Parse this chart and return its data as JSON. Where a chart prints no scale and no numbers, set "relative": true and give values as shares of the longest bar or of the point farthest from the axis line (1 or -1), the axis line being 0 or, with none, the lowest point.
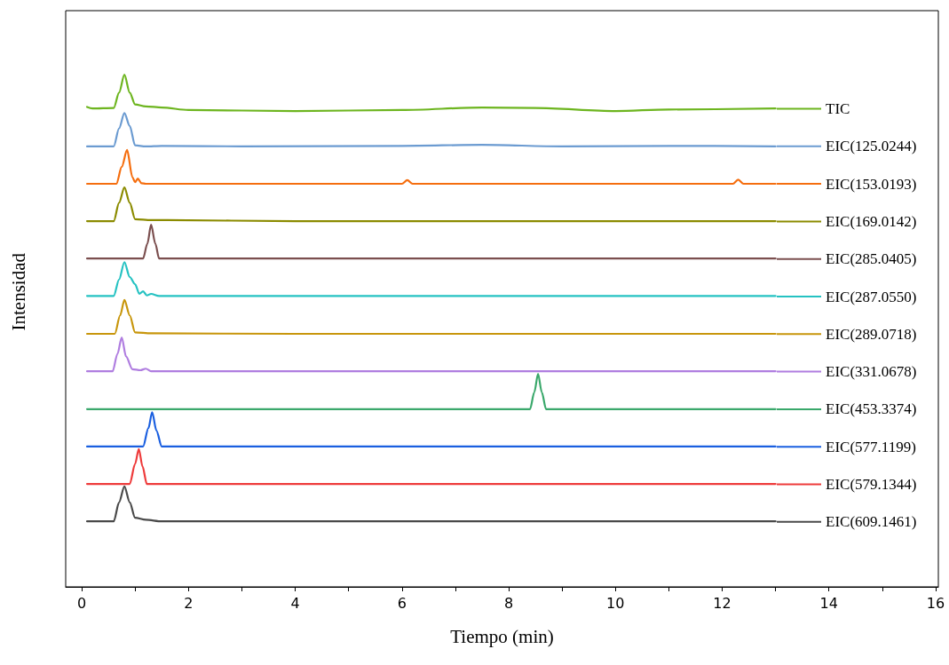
{
  "chart_data": {
    "type": "line",
    "relative": true,
    "xlabel": "Tiempo (min)",
    "ylabel": "Intensidad",
    "xlim": [
      -0.3,
      16.05
    ],
    "xticks": [
      0,
      {
        "value": 1,
        "label": null
      },
      2,
      {
        "value": 3,
        "label": null
      },
      4,
      {
        "value": 5,
        "label": null
      },
      6,
      {
        "value": 7,
        "label": null
      },
      8,
      {
        "value": 9,
        "label": null
      },
      10,
      {
        "value": 11,
        "label": null
      },
      12,
      {
        "value": 13,
        "label": null
      },
      14,
      {
        "value": 15,
        "label": null
      },
      16
    ],
    "grid": false,
    "legend": "right",
    "marker": "none",
    "line_style": "solid",
    "series": [
      {
        "name": "TIC",
        "color": "#6db51f",
        "x": [
          0.1,
          0.2,
          0.6,
          0.7,
          0.8,
          0.9,
          1.0,
          1.2,
          1.5,
          2,
          4,
          6,
          7.5,
          8.5,
          10,
          11,
          13
        ],
        "values": [
          0.937,
          0.934,
          0.935,
          0.965,
          1,
          0.965,
          0.942,
          0.938,
          0.936,
          0.931,
          0.929,
          0.931,
          0.936,
          0.935,
          0.929,
          0.932,
          0.934
        ]
      },
      {
        "name": "EIC(125.0244)",
        "color": "#6b9bd1",
        "x": [
          0.1,
          0.6,
          0.7,
          0.8,
          0.9,
          1.0,
          1.2,
          1.5,
          3,
          6,
          7.5,
          9,
          11,
          13
        ],
        "values": [
          0.86,
          0.86,
          0.895,
          0.925,
          0.9,
          0.862,
          0.86,
          0.861,
          0.86,
          0.861,
          0.863,
          0.86,
          0.861,
          0.86
        ]
      },
      {
        "name": "EIC(153.0193)",
        "color": "#f56e0f",
        "x": [
          0.1,
          0.65,
          0.75,
          0.85,
          0.95,
          1.0,
          1.05,
          1.12,
          1.2,
          3,
          6,
          6.1,
          6.2,
          9,
          12.2,
          12.3,
          12.4,
          13
        ],
        "values": [
          0.787,
          0.787,
          0.82,
          0.853,
          0.8,
          0.79,
          0.797,
          0.788,
          0.787,
          0.787,
          0.787,
          0.794,
          0.787,
          0.787,
          0.787,
          0.795,
          0.787,
          0.787
        ]
      },
      {
        "name": "EIC(169.0142)",
        "color": "#8b8b00",
        "x": [
          0.1,
          0.6,
          0.7,
          0.8,
          0.9,
          1.0,
          1.3,
          1.6,
          4,
          8,
          13
        ],
        "values": [
          0.714,
          0.714,
          0.75,
          0.78,
          0.75,
          0.718,
          0.716,
          0.716,
          0.714,
          0.714,
          0.714
        ]
      },
      {
        "name": "EIC(285.0405)",
        "color": "#7b4f4f",
        "x": [
          0.1,
          1.15,
          1.23,
          1.3,
          1.38,
          1.45,
          4,
          8,
          13
        ],
        "values": [
          0.641,
          0.641,
          0.67,
          0.707,
          0.67,
          0.641,
          0.641,
          0.641,
          0.641
        ]
      },
      {
        "name": "EIC(287.0550)",
        "color": "#25c2c2",
        "x": [
          0.1,
          0.6,
          0.7,
          0.8,
          0.9,
          1.0,
          1.08,
          1.15,
          1.22,
          1.3,
          1.45,
          4,
          8,
          13
        ],
        "values": [
          0.568,
          0.568,
          0.6,
          0.634,
          0.605,
          0.591,
          0.572,
          0.577,
          0.569,
          0.572,
          0.568,
          0.568,
          0.568,
          0.568
        ]
      },
      {
        "name": "EIC(289.0718)",
        "color": "#c8960c",
        "x": [
          0.1,
          0.62,
          0.72,
          0.8,
          0.9,
          1.0,
          1.3,
          4,
          8,
          13
        ],
        "values": [
          0.494,
          0.494,
          0.53,
          0.56,
          0.53,
          0.497,
          0.495,
          0.494,
          0.494,
          0.494
        ]
      },
      {
        "name": "EIC(331.0678)",
        "color": "#b07ee0",
        "x": [
          0.1,
          0.58,
          0.67,
          0.75,
          0.83,
          0.95,
          1.1,
          1.2,
          1.3,
          4,
          8,
          13
        ],
        "values": [
          0.421,
          0.421,
          0.455,
          0.487,
          0.45,
          0.425,
          0.423,
          0.426,
          0.421,
          0.421,
          0.421,
          0.421
        ]
      },
      {
        "name": "EIC(453.3374)",
        "color": "#3aa86b",
        "x": [
          0.1,
          4,
          8.4,
          8.48,
          8.55,
          8.62,
          8.7,
          10,
          13
        ],
        "values": [
          0.347,
          0.347,
          0.347,
          0.38,
          0.416,
          0.38,
          0.347,
          0.347,
          0.347
        ]
      },
      {
        "name": "EIC(577.1199)",
        "color": "#1a5fe0",
        "x": [
          0.1,
          1.15,
          1.25,
          1.32,
          1.4,
          1.5,
          4,
          8,
          13
        ],
        "values": [
          0.274,
          0.274,
          0.31,
          0.341,
          0.305,
          0.274,
          0.274,
          0.274,
          0.274
        ]
      },
      {
        "name": "EIC(579.1344)",
        "color": "#ee3b3b",
        "x": [
          0.1,
          0.9,
          1.0,
          1.07,
          1.14,
          1.22,
          4,
          8,
          13
        ],
        "values": [
          0.201,
          0.201,
          0.24,
          0.269,
          0.235,
          0.201,
          0.201,
          0.201,
          0.201
        ]
      },
      {
        "name": "EIC(609.1461)",
        "color": "#4a4a4a",
        "x": [
          0.1,
          0.6,
          0.7,
          0.8,
          0.9,
          1.0,
          1.2,
          1.5,
          4,
          8,
          13
        ],
        "values": [
          0.128,
          0.128,
          0.165,
          0.196,
          0.165,
          0.135,
          0.131,
          0.128,
          0.128,
          0.128,
          0.128
        ]
      }
    ]
  }
}
